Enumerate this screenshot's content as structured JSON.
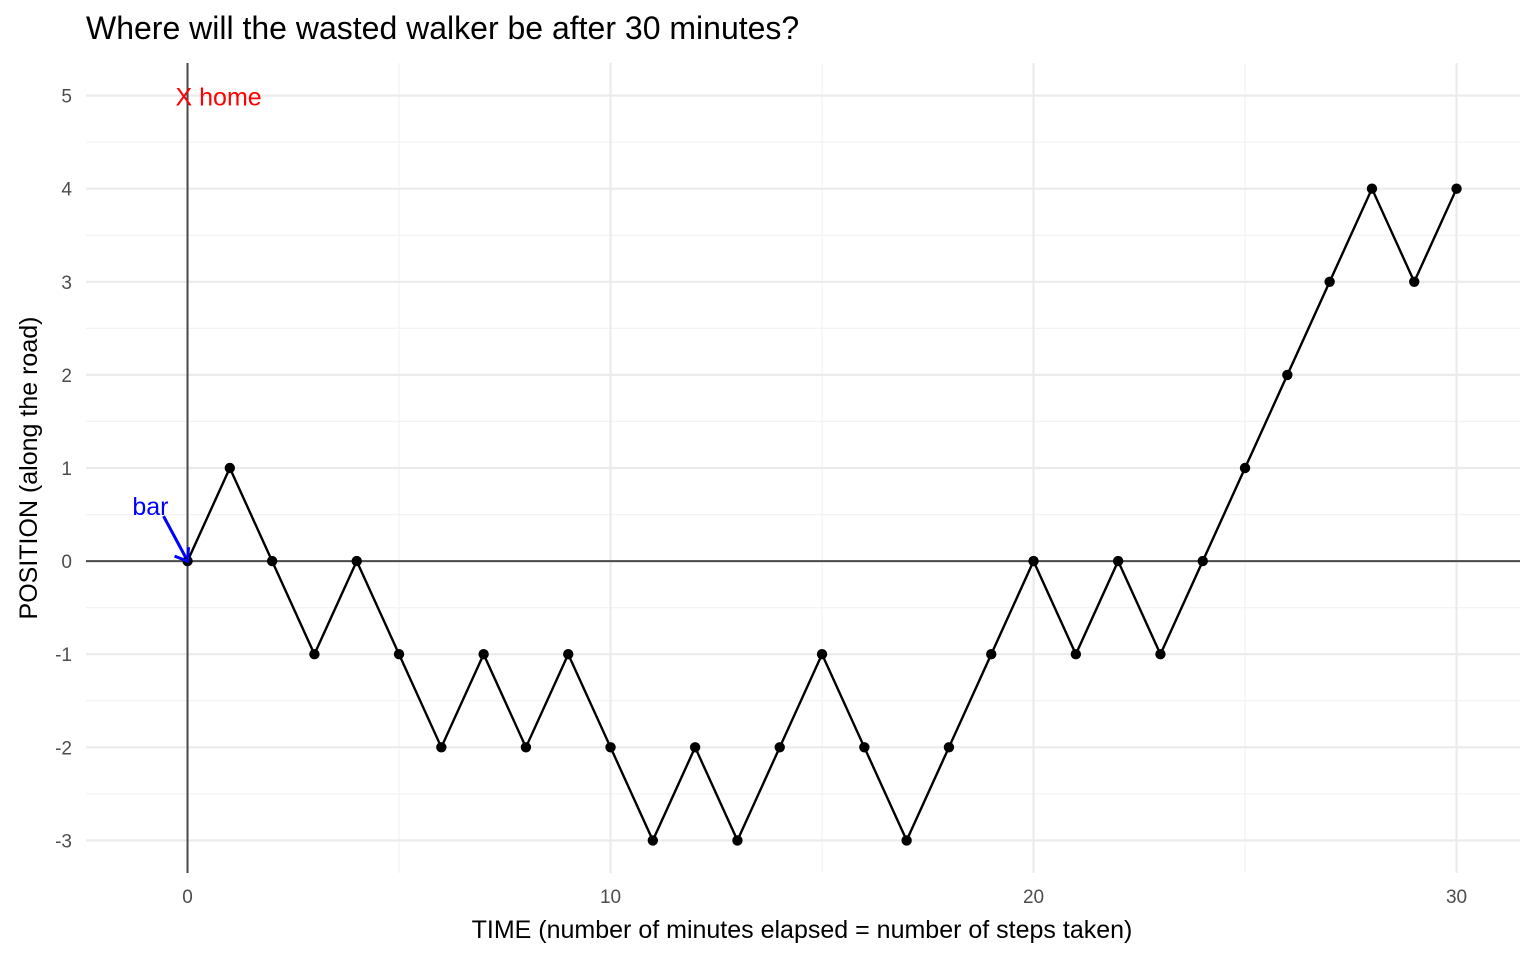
{
  "chart_data": {
    "type": "line",
    "title": "Where will the wasted walker be after 30 minutes?",
    "xlabel": "TIME (number of minutes elapsed =  number of steps taken)",
    "ylabel": "POSITION (along the road)",
    "xlim": [
      -2.4,
      31.5
    ],
    "ylim": [
      -3.35,
      5.35
    ],
    "x_ticks": [
      0,
      10,
      20,
      30
    ],
    "x_tick_labels": [
      "0",
      "10",
      "20",
      "30"
    ],
    "y_ticks": [
      -3,
      -2,
      -1,
      0,
      1,
      2,
      3,
      4,
      5
    ],
    "y_tick_labels": [
      "-3",
      "-2",
      "-1",
      "0",
      "1",
      "2",
      "3",
      "4",
      "5"
    ],
    "grid": true,
    "series": [
      {
        "x": [
          0,
          1,
          2,
          3,
          4,
          5,
          6,
          7,
          8,
          9,
          10,
          11,
          12,
          13,
          14,
          15,
          16,
          17,
          18,
          19,
          20,
          21,
          22,
          23,
          24,
          25,
          26,
          27,
          28,
          29,
          30
        ],
        "y": [
          0,
          1,
          0,
          -1,
          0,
          -1,
          -2,
          -1,
          -2,
          -1,
          -2,
          -3,
          -2,
          -3,
          -2,
          -1,
          -2,
          -3,
          -2,
          -1,
          0,
          -1,
          0,
          -1,
          0,
          1,
          2,
          3,
          4,
          3,
          4
        ],
        "color": "#000000"
      }
    ],
    "annotations": [
      {
        "text": "X home",
        "x": 0,
        "y": 5,
        "color": "#ff0000"
      },
      {
        "text": "bar",
        "x": 0,
        "y": 0,
        "color": "#0000ff",
        "arrow": true
      }
    ]
  }
}
